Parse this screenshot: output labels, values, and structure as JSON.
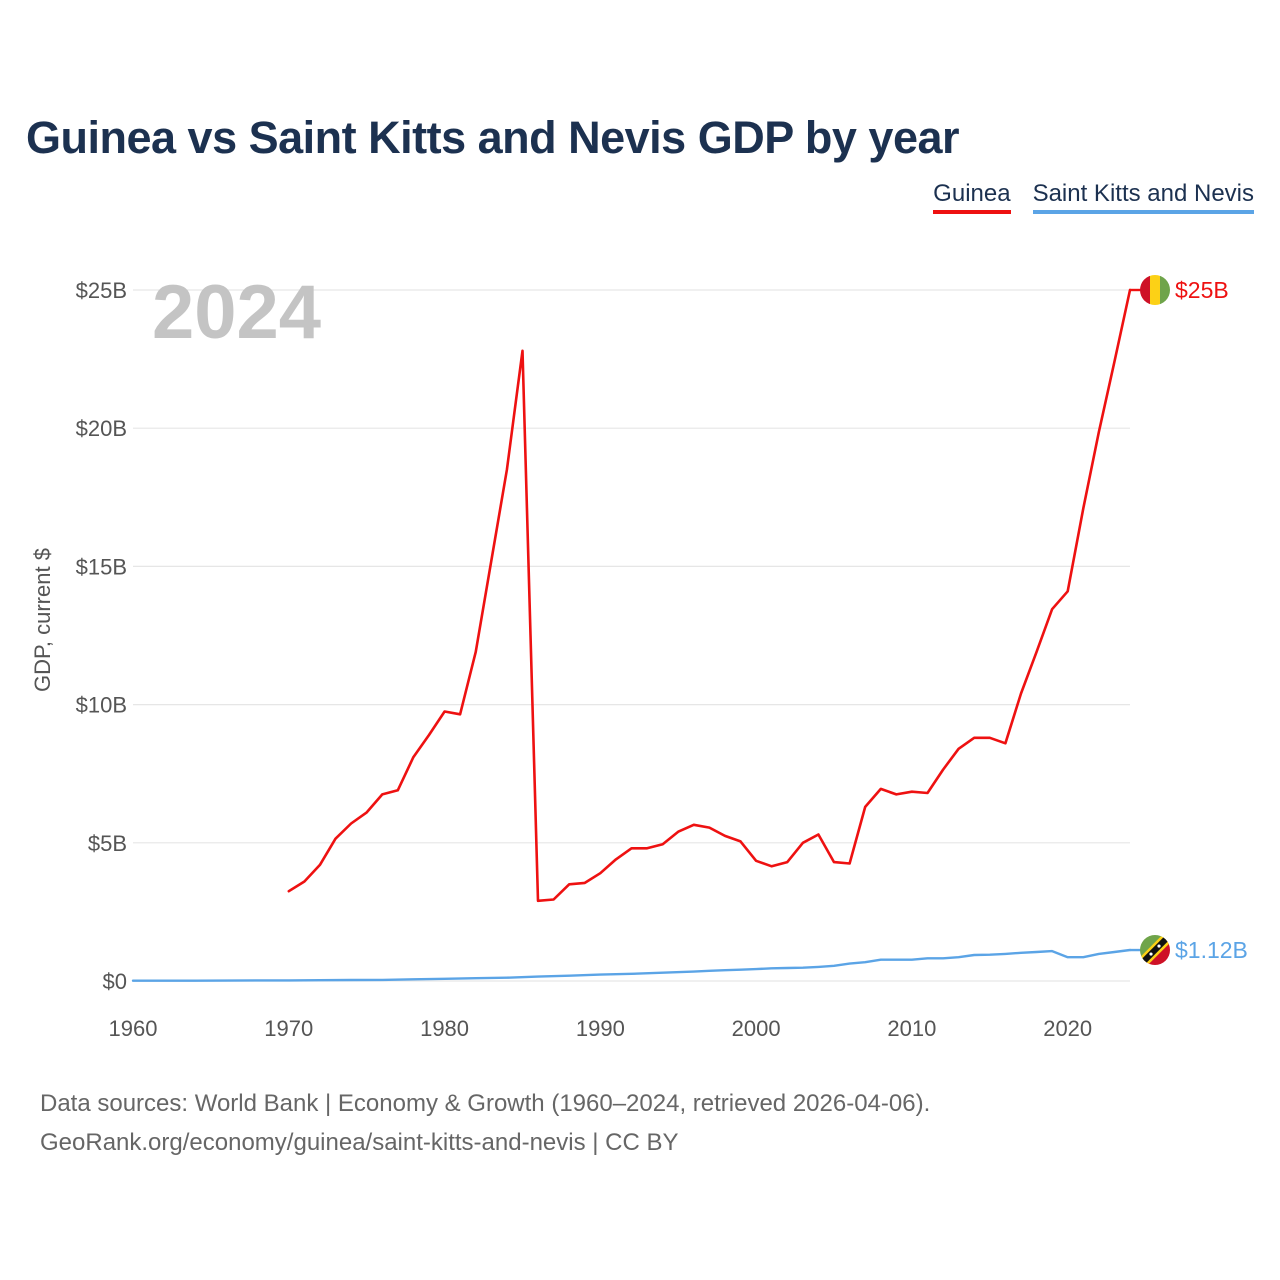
{
  "title": "Guinea vs Saint Kitts and Nevis GDP by year",
  "legend": {
    "guinea": "Guinea",
    "skn": "Saint Kitts and Nevis"
  },
  "footer": {
    "line1": "Data sources: World Bank | Economy & Growth (1960–2024, retrieved 2026-04-06).",
    "line2": "GeoRank.org/economy/guinea/saint-kitts-and-nevis | CC BY"
  },
  "colors": {
    "guinea": "#ee1111",
    "skn": "#5ba4e6",
    "grid": "#e6e6e6",
    "title": "#1c3150"
  },
  "chart_data": {
    "type": "line",
    "title": "Guinea vs Saint Kitts and Nevis GDP by year",
    "xlabel": "",
    "ylabel": "GDP, current $",
    "current_year": "2024",
    "xlim": [
      1960,
      2024
    ],
    "ylim": [
      0,
      25
    ],
    "unit": "billion USD",
    "x_ticks": [
      "1960",
      "1970",
      "1980",
      "1990",
      "2000",
      "2010",
      "2020"
    ],
    "x_tick_values": [
      1960,
      1970,
      1980,
      1990,
      2000,
      2010,
      2020
    ],
    "y_ticks": [
      "$0",
      "$5B",
      "$10B",
      "$15B",
      "$20B",
      "$25B"
    ],
    "y_tick_values": [
      0,
      5,
      10,
      15,
      20,
      25
    ],
    "grid": true,
    "legend_position": "top-right",
    "series": [
      {
        "name": "Guinea",
        "color": "#ee1111",
        "end_label": "$25B",
        "x": [
          1970,
          1971,
          1972,
          1973,
          1974,
          1975,
          1976,
          1977,
          1978,
          1979,
          1980,
          1981,
          1982,
          1983,
          1984,
          1985,
          1986,
          1987,
          1988,
          1989,
          1990,
          1991,
          1992,
          1993,
          1994,
          1995,
          1996,
          1997,
          1998,
          1999,
          2000,
          2001,
          2002,
          2003,
          2004,
          2005,
          2006,
          2007,
          2008,
          2009,
          2010,
          2011,
          2012,
          2013,
          2014,
          2015,
          2016,
          2017,
          2018,
          2019,
          2020,
          2021,
          2022,
          2023,
          2024
        ],
        "values": [
          3.25,
          3.6,
          4.2,
          5.15,
          5.7,
          6.1,
          6.75,
          6.9,
          8.1,
          8.9,
          9.75,
          9.65,
          11.9,
          15.2,
          18.5,
          22.8,
          2.9,
          2.95,
          3.5,
          3.55,
          3.9,
          4.4,
          4.8,
          4.8,
          4.95,
          5.4,
          5.65,
          5.55,
          5.25,
          5.05,
          4.35,
          4.15,
          4.3,
          5.0,
          5.3,
          4.3,
          4.25,
          6.3,
          6.95,
          6.75,
          6.85,
          6.8,
          7.65,
          8.4,
          8.8,
          8.8,
          8.6,
          10.4,
          11.9,
          13.45,
          14.1,
          17.1,
          19.85,
          22.4,
          25.0
        ]
      },
      {
        "name": "Saint Kitts and Nevis",
        "color": "#5ba4e6",
        "end_label": "$1.12B",
        "x": [
          1960,
          1962,
          1964,
          1966,
          1968,
          1970,
          1972,
          1974,
          1976,
          1978,
          1980,
          1982,
          1984,
          1986,
          1988,
          1990,
          1992,
          1994,
          1996,
          1997,
          1998,
          1999,
          2000,
          2001,
          2002,
          2003,
          2004,
          2005,
          2006,
          2007,
          2008,
          2009,
          2010,
          2011,
          2012,
          2013,
          2014,
          2015,
          2016,
          2017,
          2018,
          2019,
          2020,
          2021,
          2022,
          2023,
          2024
        ],
        "values": [
          0.01,
          0.01,
          0.01,
          0.015,
          0.02,
          0.02,
          0.03,
          0.035,
          0.04,
          0.06,
          0.08,
          0.1,
          0.12,
          0.16,
          0.19,
          0.23,
          0.26,
          0.3,
          0.34,
          0.37,
          0.39,
          0.41,
          0.43,
          0.46,
          0.47,
          0.48,
          0.51,
          0.55,
          0.63,
          0.68,
          0.77,
          0.77,
          0.77,
          0.82,
          0.82,
          0.86,
          0.94,
          0.95,
          0.98,
          1.02,
          1.05,
          1.08,
          0.86,
          0.86,
          0.98,
          1.05,
          1.12
        ]
      }
    ]
  }
}
